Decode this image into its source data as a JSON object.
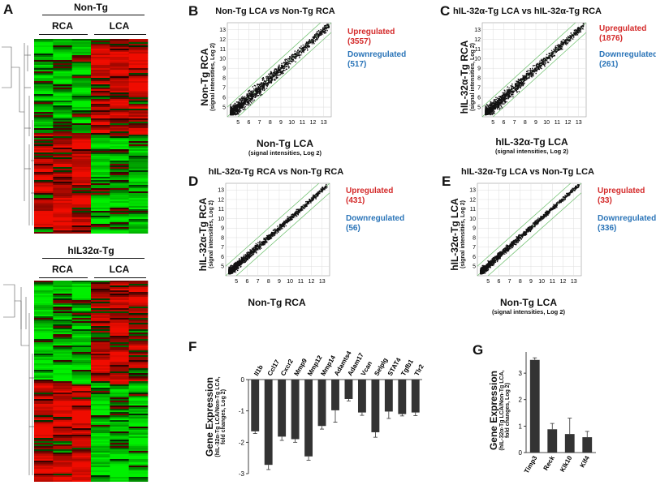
{
  "panels": {
    "A": {
      "letter": "A",
      "top_group": "Non-Tg",
      "bottom_group": "hIL32α-Tg",
      "col_left": "RCA",
      "col_right": "LCA"
    },
    "B": {
      "letter": "B",
      "title": "Non-Tg LCA vs Non-Tg RCA",
      "title_pre": "Non-Tg LCA ",
      "title_vs": "vs",
      "title_post": " Non-Tg RCA",
      "ylabel": "Non-Tg RCA",
      "ylabel_sub": "(signal intensities, Log 2)",
      "xlabel": "Non-Tg LCA",
      "xlabel_sub": "(signal intensities, Log 2)",
      "up_label": "Upregulated",
      "up_count": "(3557)",
      "down_label": "Downregulated",
      "down_count": "(517)"
    },
    "C": {
      "letter": "C",
      "title": "hIL-32α-Tg LCA vs hIL-32α-Tg RCA",
      "ylabel": "hIL-32α-Tg RCA",
      "ylabel_sub": "(signal intensities, Log 2)",
      "xlabel": "hIL-32α-Tg LCA",
      "xlabel_sub": "(signal intensities, Log 2)",
      "up_label": "Upregulated",
      "up_count": "(1876)",
      "down_label": "Downregulated",
      "down_count": "(261)"
    },
    "D": {
      "letter": "D",
      "title": "hIL-32α-Tg RCA vs Non-Tg RCA",
      "ylabel": "hIL-32α-Tg RCA",
      "ylabel_sub": "(signal intensities, Log 2)",
      "xlabel": "Non-Tg RCA",
      "xlabel_sub": "(signal intensities, Log 2)",
      "up_label": "Upregulated",
      "up_count": "(431)",
      "down_label": "Downregulated",
      "down_count": "(56)"
    },
    "E": {
      "letter": "E",
      "title": "hIL-32α-Tg LCA vs Non-Tg LCA",
      "ylabel": "hIL-32α-Tg LCA",
      "ylabel_sub": "(signal intensities, Log 2)",
      "xlabel": "Non-Tg LCA",
      "xlabel_sub": "(signal intensities, Log 2)",
      "up_label": "Upregulated",
      "up_count": "(33)",
      "down_label": "Downregulated",
      "down_count": "(336)"
    },
    "F": {
      "letter": "F",
      "ylabel": "Gene Expression",
      "ylabel_sub1": "(hIL-32α-Tg LCA/Non-Tg LCA,",
      "ylabel_sub2": "fold changes, Log 2)"
    },
    "G": {
      "letter": "G",
      "ylabel": "Gene Expression",
      "ylabel_sub1": "(hIL-32α-Tg LCA/Non-Tg LCA,",
      "ylabel_sub2": "fold changes, Log 2)"
    }
  },
  "scatter_axis": {
    "ticks": [
      "5",
      "6",
      "7",
      "8",
      "9",
      "10",
      "11",
      "12",
      "13"
    ],
    "ticks_y": [
      "5",
      "6",
      "7",
      "8",
      "9",
      "10",
      "11",
      "12",
      "13"
    ],
    "range": [
      4,
      13.7
    ]
  },
  "chart_data": [
    {
      "id": "F",
      "type": "bar",
      "categories": [
        "Il1b",
        "Ccl17",
        "Cxcr2",
        "Mmp9",
        "Mmp12",
        "Mmp14",
        "Adamts4",
        "Adam17",
        "Vcan",
        "Selplg",
        "STAT4",
        "Tgfb1",
        "Tlr2"
      ],
      "values": [
        -1.65,
        -2.72,
        -1.82,
        -1.9,
        -2.45,
        -1.48,
        -0.98,
        -0.62,
        -1.05,
        -1.68,
        -1.02,
        -1.1,
        -1.05
      ],
      "errors": [
        0.07,
        0.15,
        0.12,
        0.1,
        0.12,
        0.1,
        0.38,
        0.06,
        0.09,
        0.16,
        0.22,
        0.06,
        0.1
      ],
      "yticks": [
        "0",
        "-1",
        "-2",
        "-3"
      ],
      "ylim": [
        -3,
        0
      ]
    },
    {
      "id": "G",
      "type": "bar",
      "categories": [
        "Timp3",
        "Reck",
        "Klk10",
        "Klf4"
      ],
      "values": [
        3.5,
        0.88,
        0.7,
        0.58
      ],
      "errors": [
        0.08,
        0.22,
        0.6,
        0.22
      ],
      "yticks": [
        "0",
        "1",
        "2",
        "3"
      ],
      "ylim": [
        0,
        3.8
      ]
    }
  ]
}
